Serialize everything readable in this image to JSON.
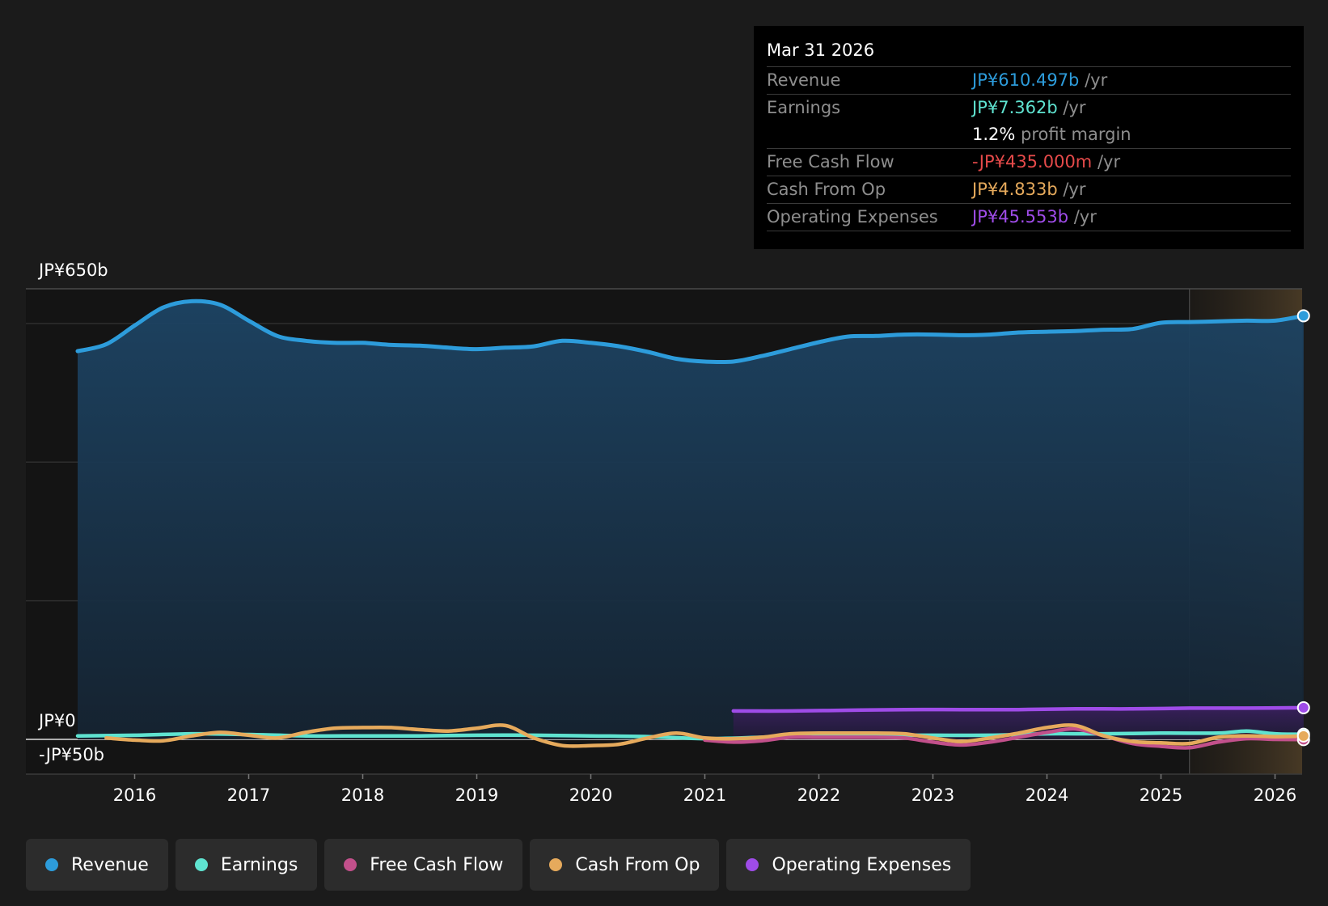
{
  "colors": {
    "revenue": "#2d9cdb",
    "earnings": "#5fe3d0",
    "free_cash_flow": "#c2508b",
    "cash_from_op": "#e6aa5c",
    "operating_expenses": "#9f4ce8",
    "negative": "#e64a4a",
    "background": "#1b1b1b",
    "plot_background": "#141414",
    "forecast_band": "#3a3128"
  },
  "tooltip": {
    "date": "Mar 31 2026",
    "rows": [
      {
        "label": "Revenue",
        "value": "JP¥610.497b",
        "unit": " /yr",
        "color": "#2d9cdb"
      },
      {
        "label": "Earnings",
        "value": "JP¥7.362b",
        "unit": " /yr",
        "color": "#5fe3d0"
      },
      {
        "label": "",
        "value": "1.2%",
        "unit": " profit margin",
        "color": "#ffffff"
      },
      {
        "label": "Free Cash Flow",
        "value": "-JP¥435.000m",
        "unit": " /yr",
        "color": "#e64a4a"
      },
      {
        "label": "Cash From Op",
        "value": "JP¥4.833b",
        "unit": " /yr",
        "color": "#e6aa5c"
      },
      {
        "label": "Operating Expenses",
        "value": "JP¥45.553b",
        "unit": " /yr",
        "color": "#9f4ce8"
      }
    ]
  },
  "legend": [
    {
      "label": "Revenue",
      "color": "#2d9cdb"
    },
    {
      "label": "Earnings",
      "color": "#5fe3d0"
    },
    {
      "label": "Free Cash Flow",
      "color": "#c2508b"
    },
    {
      "label": "Cash From Op",
      "color": "#e6aa5c"
    },
    {
      "label": "Operating Expenses",
      "color": "#9f4ce8"
    }
  ],
  "chart_data": {
    "type": "line",
    "title": "",
    "xlabel": "",
    "ylabel": "",
    "y_tick_labels": [
      {
        "value": 650,
        "label": "JP¥650b"
      },
      {
        "value": 0,
        "label": "JP¥0"
      },
      {
        "value": -50,
        "label": "-JP¥50b"
      }
    ],
    "ylim": [
      -50,
      650
    ],
    "xlim": [
      2015.1,
      2026.25
    ],
    "x_ticks": [
      "2016",
      "2017",
      "2018",
      "2019",
      "2020",
      "2021",
      "2022",
      "2023",
      "2024",
      "2025",
      "2026"
    ],
    "forecast_start": 2025.25,
    "grid": true,
    "series": [
      {
        "name": "Revenue",
        "color": "#2d9cdb",
        "x": [
          2015.5,
          2015.75,
          2016.0,
          2016.25,
          2016.5,
          2016.75,
          2017.0,
          2017.25,
          2017.5,
          2017.75,
          2018.0,
          2018.25,
          2018.5,
          2018.75,
          2019.0,
          2019.25,
          2019.5,
          2019.75,
          2020.0,
          2020.25,
          2020.5,
          2020.75,
          2021.0,
          2021.25,
          2021.5,
          2021.75,
          2022.0,
          2022.25,
          2022.5,
          2022.75,
          2023.0,
          2023.25,
          2023.5,
          2023.75,
          2024.0,
          2024.25,
          2024.5,
          2024.75,
          2025.0,
          2025.25,
          2025.5,
          2025.75,
          2026.0,
          2026.25
        ],
        "values": [
          560,
          570,
          597,
          623,
          632,
          627,
          604,
          582,
          575,
          572,
          572,
          569,
          568,
          565,
          563,
          565,
          567,
          575,
          572,
          567,
          559,
          549,
          545,
          545,
          553,
          563,
          573,
          581,
          582,
          584,
          584,
          583,
          584,
          587,
          588,
          589,
          591,
          592,
          601,
          602,
          603,
          604,
          604,
          611
        ]
      },
      {
        "name": "Earnings",
        "color": "#5fe3d0",
        "x": [
          2015.5,
          2016.0,
          2016.5,
          2017.0,
          2017.5,
          2018.0,
          2018.5,
          2019.0,
          2019.5,
          2020.0,
          2020.5,
          2021.0,
          2021.5,
          2022.0,
          2022.5,
          2023.0,
          2023.5,
          2024.0,
          2024.5,
          2025.0,
          2025.5,
          2025.75,
          2026.0,
          2026.25
        ],
        "values": [
          5,
          6,
          8,
          7,
          5,
          5,
          5,
          6,
          6,
          5,
          4,
          1,
          3,
          6,
          6,
          6,
          6,
          8,
          8,
          9,
          9,
          12,
          8,
          7.4
        ]
      },
      {
        "name": "Free Cash Flow",
        "color": "#c2508b",
        "x": [
          2021.0,
          2021.25,
          2021.5,
          2021.75,
          2022.0,
          2022.25,
          2022.5,
          2022.75,
          2023.0,
          2023.25,
          2023.5,
          2023.75,
          2024.0,
          2024.25,
          2024.5,
          2024.75,
          2025.0,
          2025.25,
          2025.5,
          2025.75,
          2026.0,
          2026.25
        ],
        "values": [
          -1,
          -4,
          -2,
          3,
          3,
          3,
          3,
          2,
          -4,
          -8,
          -4,
          3,
          10,
          15,
          5,
          -6,
          -10,
          -12,
          -4,
          1,
          0,
          -0.4
        ]
      },
      {
        "name": "Cash From Op",
        "color": "#e6aa5c",
        "x": [
          2015.75,
          2016.0,
          2016.25,
          2016.5,
          2016.75,
          2017.0,
          2017.25,
          2017.5,
          2017.75,
          2018.0,
          2018.25,
          2018.5,
          2018.75,
          2019.0,
          2019.25,
          2019.5,
          2019.75,
          2020.0,
          2020.25,
          2020.5,
          2020.75,
          2021.0,
          2021.25,
          2021.5,
          2021.75,
          2022.0,
          2022.25,
          2022.5,
          2022.75,
          2023.0,
          2023.25,
          2023.5,
          2023.75,
          2024.0,
          2024.25,
          2024.5,
          2024.75,
          2025.0,
          2025.25,
          2025.5,
          2025.75,
          2026.0,
          2026.25
        ],
        "values": [
          2,
          -1,
          -2,
          5,
          10,
          6,
          2,
          10,
          16,
          17,
          17,
          14,
          12,
          16,
          20,
          2,
          -9,
          -9,
          -7,
          2,
          9,
          2,
          1,
          3,
          8,
          9,
          9,
          9,
          8,
          2,
          -3,
          2,
          9,
          17,
          20,
          5,
          -3,
          -5,
          -6,
          3,
          5,
          4,
          4.8
        ]
      },
      {
        "name": "Operating Expenses",
        "color": "#9f4ce8",
        "x": [
          2021.25,
          2021.75,
          2022.25,
          2022.75,
          2023.25,
          2023.75,
          2024.25,
          2024.75,
          2025.25,
          2025.75,
          2026.25
        ],
        "values": [
          41,
          41,
          42,
          43,
          43,
          43,
          44,
          44,
          45,
          45,
          45.6
        ]
      }
    ]
  }
}
